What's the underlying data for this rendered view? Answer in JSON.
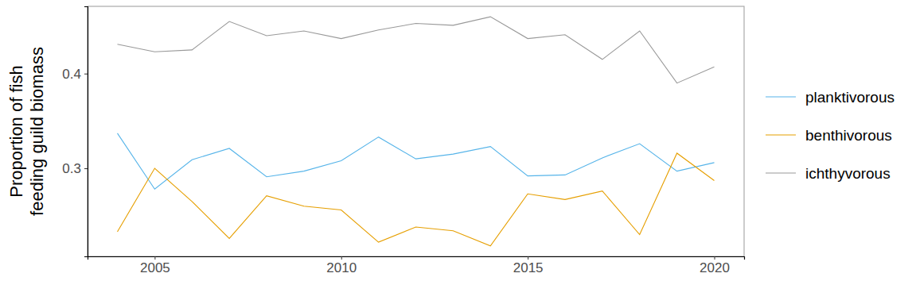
{
  "chart_data": {
    "type": "line",
    "y_label": [
      "Proportion of fish",
      "feeding guild biomass"
    ],
    "x": [
      2004,
      2005,
      2006,
      2007,
      2008,
      2009,
      2010,
      2011,
      2012,
      2013,
      2014,
      2015,
      2016,
      2017,
      2018,
      2019,
      2020
    ],
    "series": [
      {
        "name": "planktivorous",
        "color": "#56B4E9",
        "values": [
          0.337,
          0.278,
          0.309,
          0.321,
          0.291,
          0.297,
          0.308,
          0.333,
          0.31,
          0.315,
          0.323,
          0.292,
          0.293,
          0.311,
          0.326,
          0.297,
          0.306
        ]
      },
      {
        "name": "benthivorous",
        "color": "#E69F00",
        "values": [
          0.233,
          0.3,
          0.265,
          0.226,
          0.271,
          0.26,
          0.256,
          0.222,
          0.238,
          0.234,
          0.218,
          0.273,
          0.267,
          0.276,
          0.23,
          0.316,
          0.287
        ]
      },
      {
        "name": "ichthyvorous",
        "color": "#999999",
        "values": [
          0.431,
          0.423,
          0.425,
          0.455,
          0.44,
          0.445,
          0.437,
          0.446,
          0.453,
          0.451,
          0.46,
          0.437,
          0.441,
          0.415,
          0.445,
          0.39,
          0.407
        ]
      }
    ],
    "xlim": [
      2003.2,
      2020.8
    ],
    "xticks": [
      2005,
      2010,
      2015,
      2020
    ],
    "ylim": [
      0.207,
      0.471
    ],
    "yticks": [
      0.3,
      0.4
    ],
    "grid": false,
    "legend": "right"
  }
}
